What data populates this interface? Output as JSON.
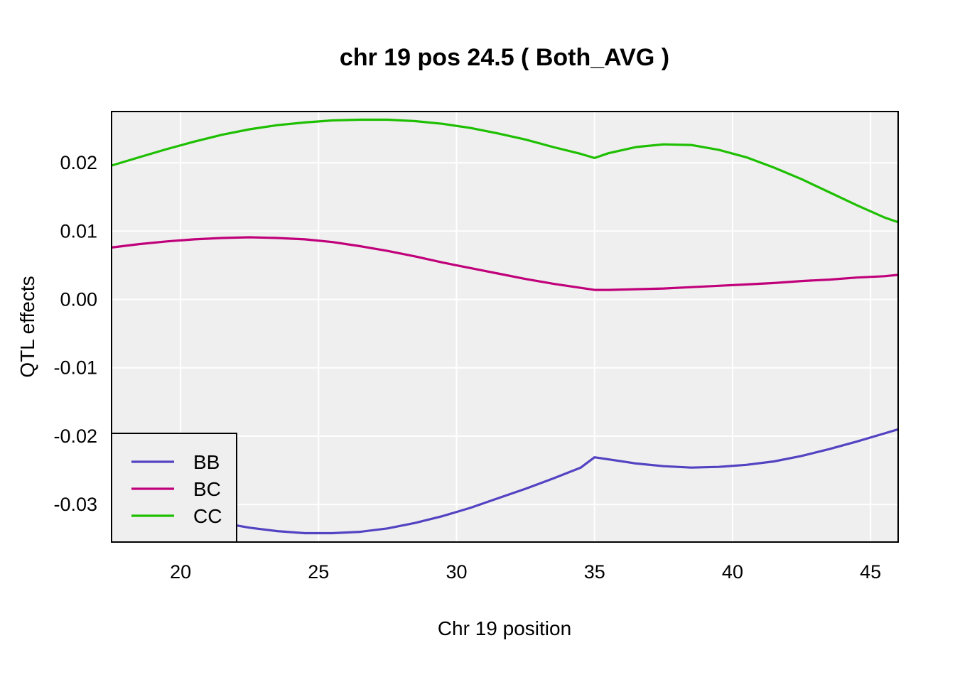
{
  "chart_data": {
    "type": "line",
    "title": "chr 19 pos 24.5 ( Both_AVG )",
    "xlabel": "Chr 19 position",
    "ylabel": "QTL effects",
    "xlim": [
      17.5,
      46
    ],
    "ylim": [
      -0.0355,
      0.0275
    ],
    "xticks": [
      20,
      25,
      30,
      35,
      40,
      45
    ],
    "xtick_labels": [
      "20",
      "25",
      "30",
      "35",
      "40",
      "45"
    ],
    "yticks": [
      -0.03,
      -0.02,
      -0.01,
      0.0,
      0.01,
      0.02
    ],
    "ytick_labels": [
      "-0.03",
      "-0.02",
      "-0.01",
      "0.00",
      "0.01",
      "0.02"
    ],
    "grid": true,
    "legend_position": "bottom-left",
    "x": [
      17.5,
      18.5,
      19.5,
      20.5,
      21.5,
      22.5,
      23.5,
      24.5,
      25.5,
      26.5,
      27.5,
      28.5,
      29.5,
      30.5,
      31.5,
      32.5,
      33.5,
      34.5,
      35,
      35.5,
      36.5,
      37.5,
      38.5,
      39.5,
      40.5,
      41.5,
      42.5,
      43.5,
      44.5,
      45.5,
      46
    ],
    "series": [
      {
        "name": "BB",
        "color": "#5243c2",
        "values": [
          -0.0282,
          -0.0298,
          -0.0311,
          -0.032,
          -0.0327,
          -0.0334,
          -0.0339,
          -0.0342,
          -0.0342,
          -0.034,
          -0.0335,
          -0.0327,
          -0.0317,
          -0.0305,
          -0.0291,
          -0.0277,
          -0.0262,
          -0.0246,
          -0.0231,
          -0.0234,
          -0.024,
          -0.0244,
          -0.0246,
          -0.0245,
          -0.0242,
          -0.0237,
          -0.0229,
          -0.0219,
          -0.0208,
          -0.0196,
          -0.019
        ]
      },
      {
        "name": "BC",
        "color": "#c0007a",
        "values": [
          0.0076,
          0.0081,
          0.0085,
          0.0088,
          0.009,
          0.0091,
          0.009,
          0.0088,
          0.0084,
          0.0078,
          0.0071,
          0.0063,
          0.0054,
          0.0046,
          0.0038,
          0.003,
          0.0023,
          0.0017,
          0.0014,
          0.0014,
          0.0015,
          0.0016,
          0.0018,
          0.002,
          0.0022,
          0.0024,
          0.0027,
          0.0029,
          0.0032,
          0.0034,
          0.0036
        ]
      },
      {
        "name": "CC",
        "color": "#1dbf00",
        "values": [
          0.0196,
          0.0208,
          0.022,
          0.0231,
          0.0241,
          0.0249,
          0.0255,
          0.0259,
          0.0262,
          0.0263,
          0.0263,
          0.0261,
          0.0257,
          0.0251,
          0.0243,
          0.0234,
          0.0223,
          0.0213,
          0.0207,
          0.0214,
          0.0223,
          0.0227,
          0.0226,
          0.0219,
          0.0208,
          0.0193,
          0.0176,
          0.0157,
          0.0138,
          0.012,
          0.0113
        ]
      }
    ]
  }
}
